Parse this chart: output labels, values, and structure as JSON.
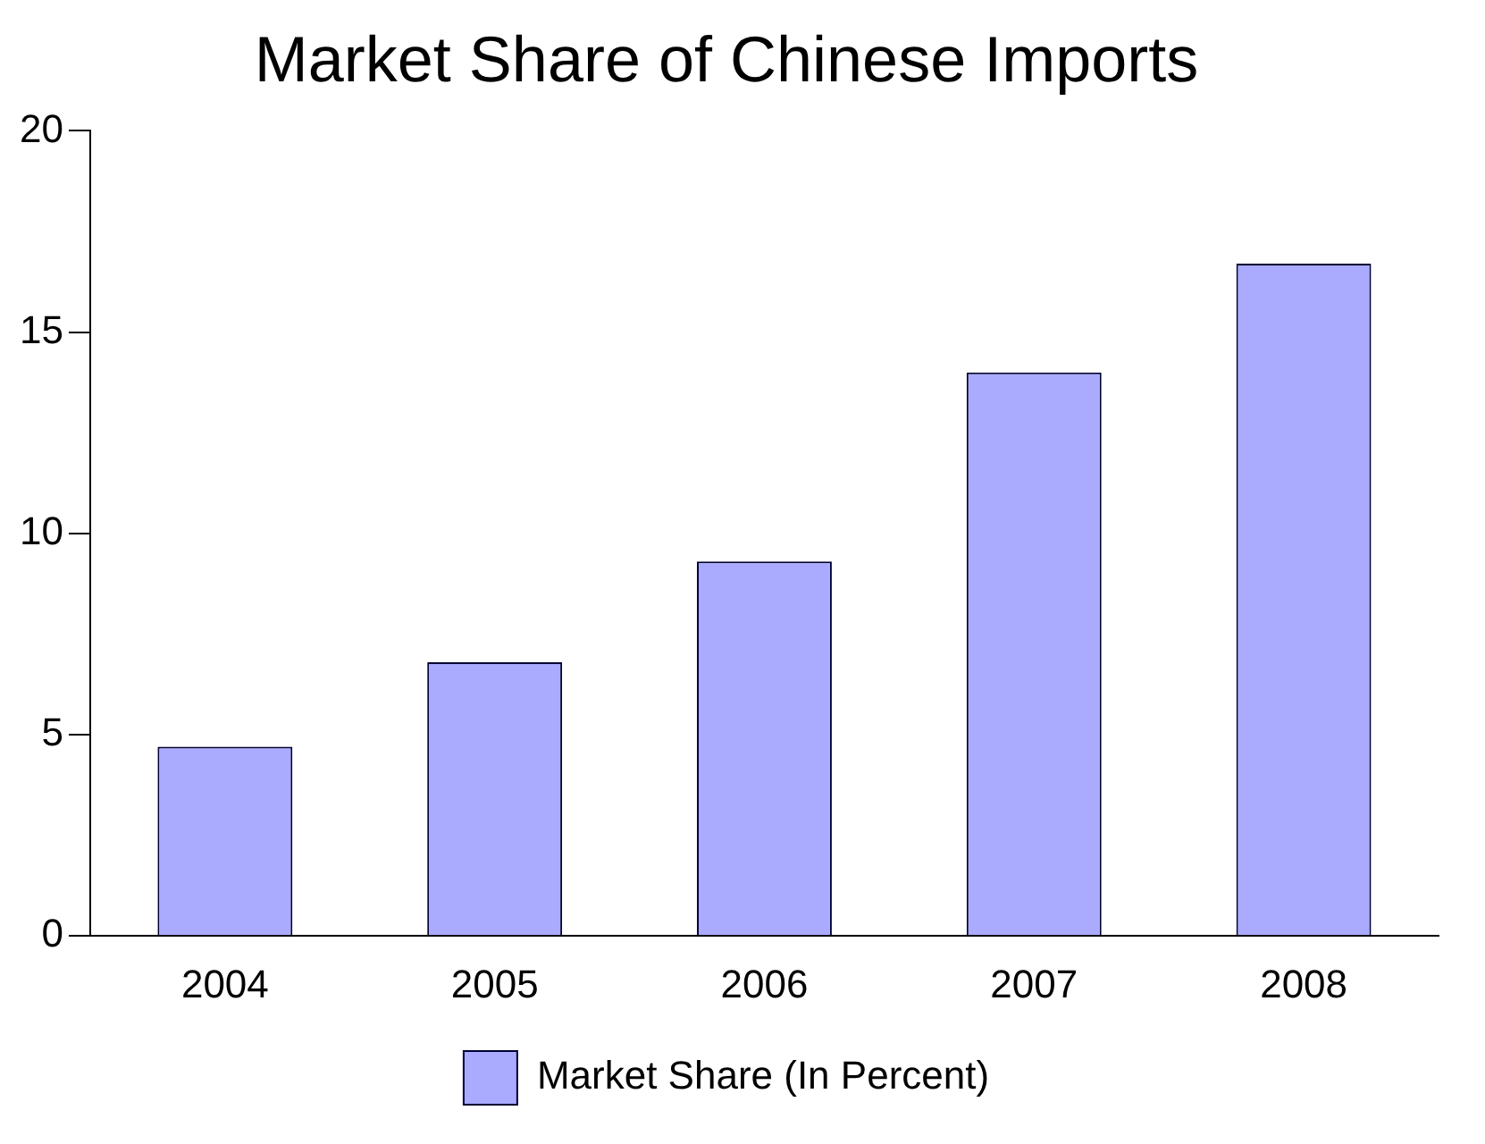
{
  "chart_data": {
    "type": "bar",
    "title": "Market Share of Chinese Imports",
    "categories": [
      "2004",
      "2005",
      "2006",
      "2007",
      "2008"
    ],
    "series": [
      {
        "name": "Market Share (In Percent)",
        "color": "#aaaaff",
        "values": [
          4.7,
          6.8,
          9.3,
          14.0,
          16.7
        ]
      }
    ],
    "ylim": [
      0,
      20
    ],
    "yticks": [
      0,
      5,
      10,
      15,
      20
    ],
    "grid": false,
    "legend": "bottom"
  }
}
